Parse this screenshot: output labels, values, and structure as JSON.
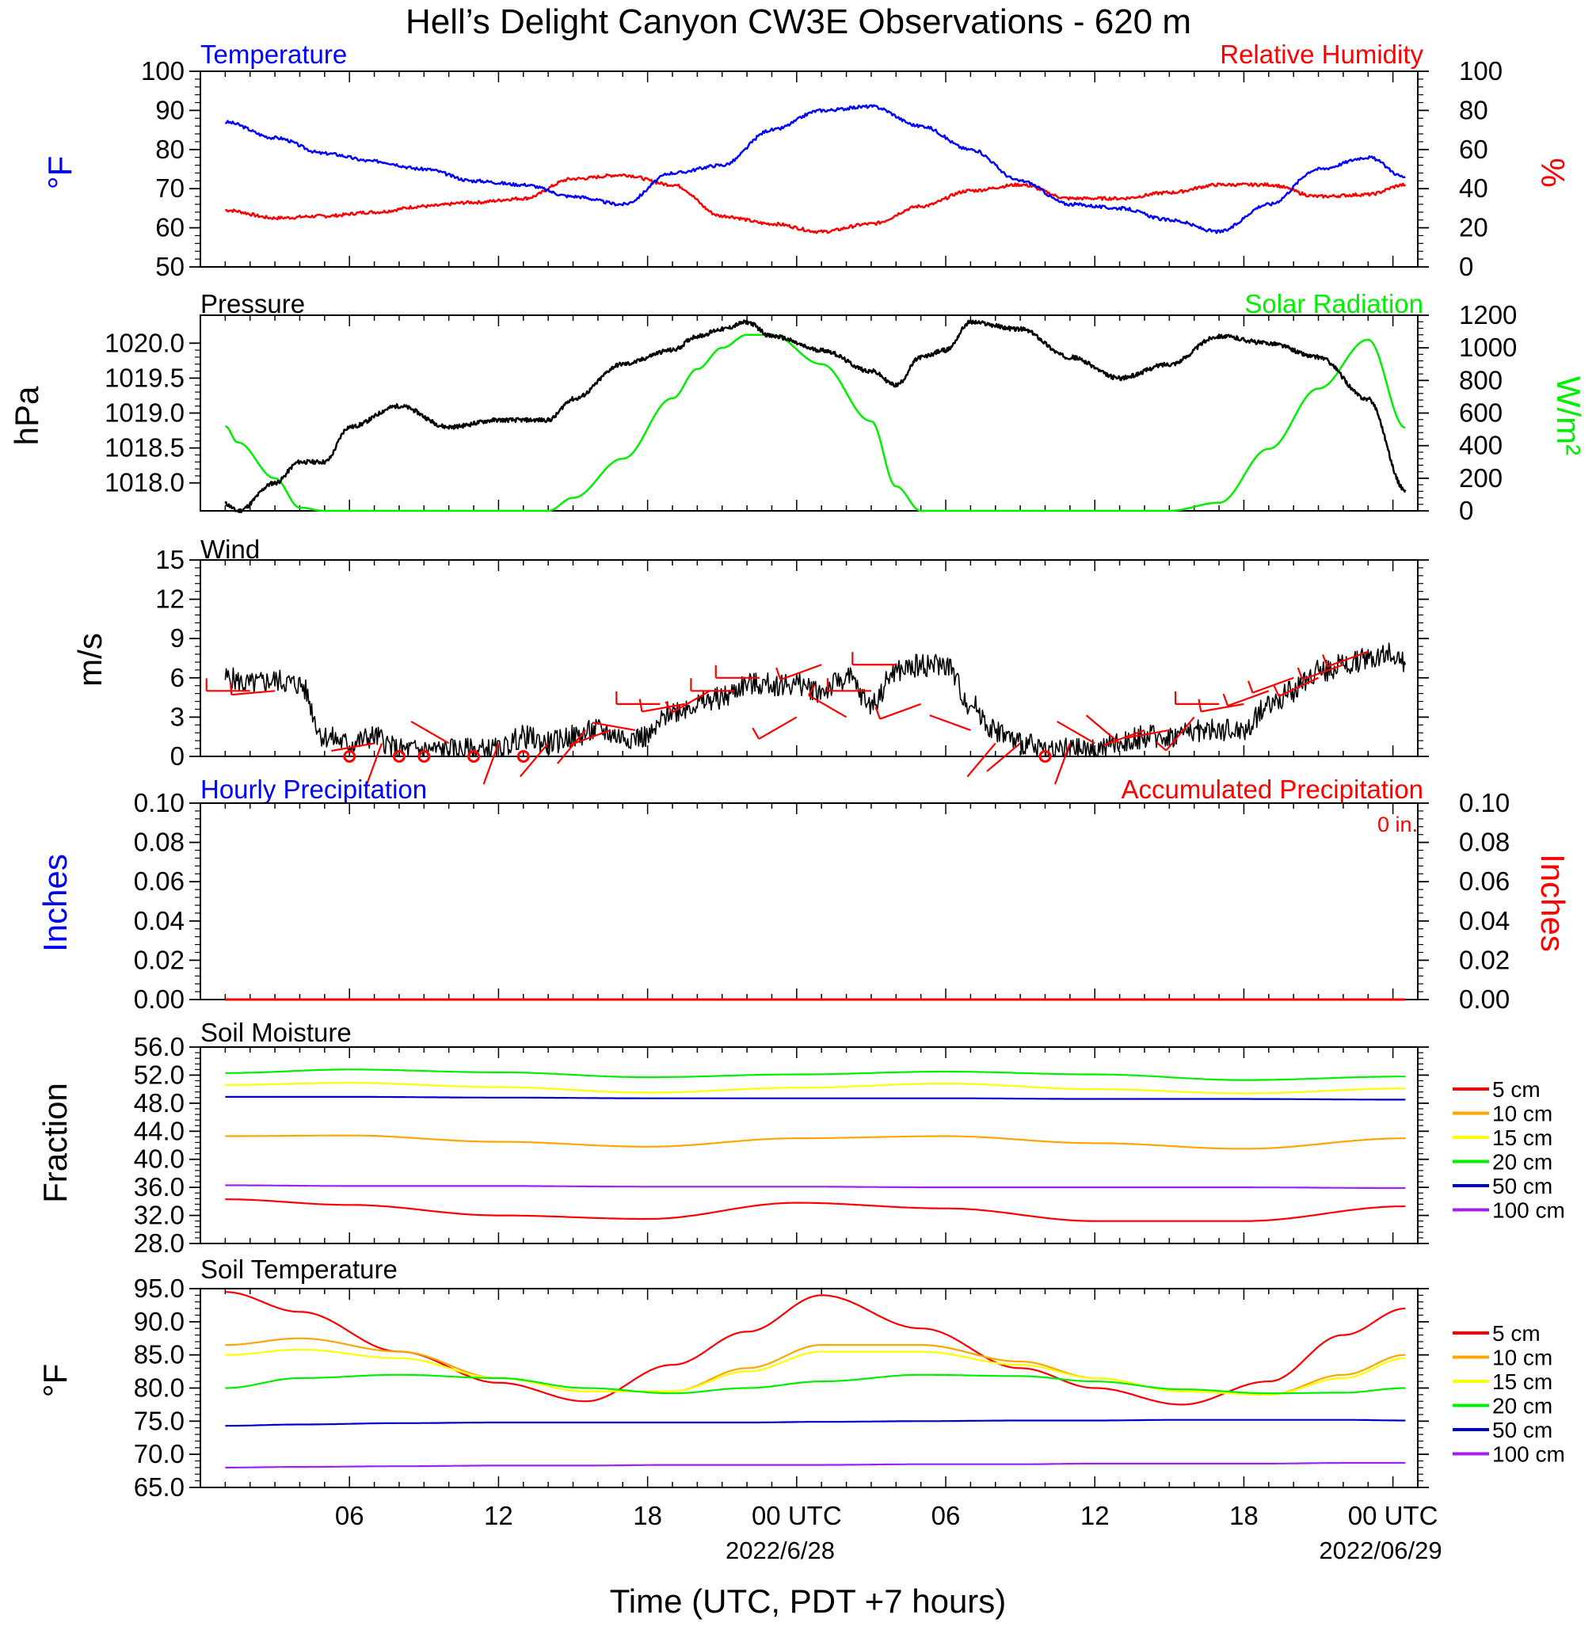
{
  "figure": {
    "title": "Hell’s Delight Canyon CW3E Observations - 620 m",
    "xlabel": "Time (UTC, PDT +7 hours)",
    "x_ticks": [
      "06",
      "12",
      "18",
      "00 UTC",
      "06",
      "12",
      "18",
      "00 UTC"
    ],
    "x_dates": [
      "2022/6/28",
      "2022/06/29"
    ]
  },
  "colors": {
    "temperature": "#0000ff",
    "humidity": "#ff0000",
    "pressure": "#000000",
    "solar": "#00ee00",
    "wind": "#000000",
    "barbs": "#ff0000",
    "hourly_precip": "#0000ff",
    "accum_precip": "#ff0000",
    "depth_5": "#ff0000",
    "depth_10": "#ffa500",
    "depth_15": "#ffff00",
    "depth_20": "#00ee00",
    "depth_50": "#0000cc",
    "depth_100": "#a020f0"
  },
  "chart_data": [
    {
      "type": "line",
      "title": "",
      "left_label": "Temperature",
      "right_label": "Relative Humidity",
      "ylabel_left": "°F",
      "ylabel_right": "%",
      "ylim_left": [
        50,
        100
      ],
      "ylim_right": [
        0,
        100
      ],
      "yticks_left": [
        "100",
        "90",
        "80",
        "70",
        "60",
        "50"
      ],
      "yticks_right": [
        "100",
        "80",
        "60",
        "40",
        "20",
        "0"
      ],
      "x_hours": [
        1,
        3,
        5,
        7,
        9,
        11,
        13,
        15,
        17,
        19,
        21,
        23,
        25,
        27,
        29,
        31,
        33,
        35,
        37,
        39,
        41,
        43,
        45,
        47,
        48.5
      ],
      "series": [
        {
          "name": "Temperature",
          "axis": "left",
          "values": [
            87,
            83,
            79,
            77,
            75,
            72,
            71,
            68,
            66,
            74,
            76,
            85,
            90,
            91,
            86,
            80,
            72,
            66,
            65,
            62,
            59,
            66,
            75,
            78,
            73
          ]
        },
        {
          "name": "Relative Humidity",
          "axis": "right",
          "values": [
            29,
            25,
            26,
            28,
            31,
            33,
            35,
            45,
            47,
            42,
            26,
            22,
            18,
            22,
            31,
            39,
            42,
            35,
            35,
            38,
            42,
            42,
            36,
            37,
            42
          ]
        }
      ]
    },
    {
      "type": "line",
      "title": "",
      "left_label": "Pressure",
      "right_label": "Solar Radiation",
      "ylabel_left": "hPa",
      "ylabel_right": "W/m²",
      "ylim_left": [
        1017.6,
        1020.4
      ],
      "ylim_right": [
        0,
        1200
      ],
      "yticks_left": [
        "1020.0",
        "1019.5",
        "1019.0",
        "1018.5",
        "1018.0"
      ],
      "yticks_right": [
        "1200",
        "1000",
        "800",
        "600",
        "400",
        "200",
        "0"
      ],
      "x_hours": [
        1,
        1.5,
        3,
        4,
        5,
        6,
        8,
        10,
        12,
        14,
        15,
        17,
        19,
        20,
        21,
        22,
        23,
        25,
        27,
        28,
        29,
        30,
        31,
        33,
        35,
        37,
        39,
        41,
        43,
        45,
        47,
        48.5
      ],
      "series": [
        {
          "name": "Pressure",
          "axis": "left",
          "values": [
            1017.7,
            1017.6,
            1018.0,
            1018.3,
            1018.3,
            1018.8,
            1019.1,
            1018.8,
            1018.9,
            1018.9,
            1019.2,
            1019.7,
            1019.9,
            1020.1,
            1020.2,
            1020.3,
            1020.1,
            1019.9,
            1019.6,
            1019.4,
            1019.8,
            1019.9,
            1020.3,
            1020.2,
            1019.8,
            1019.5,
            1019.7,
            1020.1,
            1020.0,
            1019.8,
            1019.2,
            1017.9
          ]
        },
        {
          "name": "Solar Radiation",
          "axis": "right",
          "values": [
            520,
            420,
            200,
            20,
            0,
            0,
            0,
            0,
            0,
            0,
            80,
            320,
            690,
            870,
            1000,
            1080,
            1080,
            900,
            550,
            150,
            0,
            0,
            0,
            0,
            0,
            0,
            0,
            50,
            380,
            750,
            1050,
            510
          ]
        }
      ]
    },
    {
      "type": "line",
      "title": "",
      "left_label": "Wind",
      "ylabel_left": "m/s",
      "ylim_left": [
        0,
        15
      ],
      "yticks_left": [
        "15",
        "12",
        "9",
        "6",
        "3",
        "0"
      ],
      "x_hours": [
        1,
        2,
        3,
        4,
        5,
        6,
        7,
        8,
        9,
        10,
        11,
        12,
        13,
        14,
        15,
        16,
        17,
        18,
        19,
        20,
        21,
        22,
        23,
        24,
        25,
        26,
        27,
        28,
        29,
        30,
        31,
        32,
        33,
        34,
        35,
        36,
        37,
        38,
        39,
        40,
        41,
        42,
        43,
        44,
        45,
        46,
        47,
        48,
        48.5
      ],
      "series": [
        {
          "name": "Wind",
          "axis": "left",
          "values": [
            6,
            5.5,
            5.8,
            5.5,
            1.5,
            1,
            1.5,
            0.5,
            0.5,
            0.5,
            0.5,
            0.5,
            1.5,
            1,
            1.5,
            2,
            1.5,
            1.5,
            3.5,
            4,
            4.5,
            5.5,
            5.5,
            5.5,
            5,
            6,
            4,
            6.5,
            7,
            7,
            4,
            2,
            1,
            0.5,
            0.5,
            0.5,
            1,
            1.5,
            1.5,
            2,
            2,
            2,
            4,
            5,
            6.5,
            7,
            7.5,
            8,
            7
          ]
        }
      ],
      "calm_markers_hours": [
        6,
        8,
        9,
        11,
        13,
        34
      ],
      "barbs": [
        {
          "hour": 2,
          "speed": 5,
          "dir_deg": 270
        },
        {
          "hour": 3,
          "speed": 5,
          "dir_deg": 265
        },
        {
          "hour": 7,
          "speed": 1,
          "dir_deg": 260
        },
        {
          "hour": 7.3,
          "speed": 1,
          "dir_deg": 200
        },
        {
          "hour": 10,
          "speed": 1,
          "dir_deg": 300
        },
        {
          "hour": 12,
          "speed": 1,
          "dir_deg": 200
        },
        {
          "hour": 14,
          "speed": 1,
          "dir_deg": 220
        },
        {
          "hour": 15.5,
          "speed": 2,
          "dir_deg": 220
        },
        {
          "hour": 16.5,
          "speed": 2,
          "dir_deg": 250
        },
        {
          "hour": 17.5,
          "speed": 2,
          "dir_deg": 280
        },
        {
          "hour": 18.5,
          "speed": 4,
          "dir_deg": 270
        },
        {
          "hour": 19.5,
          "speed": 4,
          "dir_deg": 260
        },
        {
          "hour": 20.5,
          "speed": 5,
          "dir_deg": 240
        },
        {
          "hour": 21.5,
          "speed": 5,
          "dir_deg": 270
        },
        {
          "hour": 22.5,
          "speed": 6,
          "dir_deg": 270
        },
        {
          "hour": 24,
          "speed": 3,
          "dir_deg": 240
        },
        {
          "hour": 25,
          "speed": 7,
          "dir_deg": 250
        },
        {
          "hour": 26,
          "speed": 3,
          "dir_deg": 300
        },
        {
          "hour": 27,
          "speed": 5,
          "dir_deg": 270
        },
        {
          "hour": 28,
          "speed": 7,
          "dir_deg": 270
        },
        {
          "hour": 29,
          "speed": 4,
          "dir_deg": 250
        },
        {
          "hour": 31,
          "speed": 2,
          "dir_deg": 290
        },
        {
          "hour": 32,
          "speed": 1,
          "dir_deg": 220
        },
        {
          "hour": 33,
          "speed": 1,
          "dir_deg": 230
        },
        {
          "hour": 35,
          "speed": 1,
          "dir_deg": 200
        },
        {
          "hour": 36,
          "speed": 1,
          "dir_deg": 300
        },
        {
          "hour": 37,
          "speed": 1,
          "dir_deg": 310
        },
        {
          "hour": 38,
          "speed": 2,
          "dir_deg": 250
        },
        {
          "hour": 39,
          "speed": 2,
          "dir_deg": 260
        },
        {
          "hour": 40,
          "speed": 3,
          "dir_deg": 220
        },
        {
          "hour": 41,
          "speed": 4,
          "dir_deg": 270
        },
        {
          "hour": 42,
          "speed": 4,
          "dir_deg": 260
        },
        {
          "hour": 43,
          "speed": 5,
          "dir_deg": 250
        },
        {
          "hour": 44,
          "speed": 6,
          "dir_deg": 250
        },
        {
          "hour": 45,
          "speed": 6,
          "dir_deg": 245
        },
        {
          "hour": 46,
          "speed": 7,
          "dir_deg": 250
        },
        {
          "hour": 47,
          "speed": 8,
          "dir_deg": 250
        }
      ]
    },
    {
      "type": "line",
      "title": "",
      "left_label": "Hourly Precipitation",
      "right_label": "Accumulated Precipitation",
      "ylabel_left": "Inches",
      "ylabel_right": "Inches",
      "ylim_left": [
        0,
        0.1
      ],
      "ylim_right": [
        0,
        0.1
      ],
      "yticks_left": [
        "0.10",
        "0.08",
        "0.06",
        "0.04",
        "0.02",
        "0.00"
      ],
      "yticks_right": [
        "0.10",
        "0.08",
        "0.06",
        "0.04",
        "0.02",
        "0.00"
      ],
      "annotation": "0 in.",
      "x_hours": [
        1,
        48.5
      ],
      "series": [
        {
          "name": "Hourly Precipitation",
          "axis": "left",
          "values": [
            0,
            0
          ]
        },
        {
          "name": "Accumulated Precipitation",
          "axis": "right",
          "values": [
            0,
            0
          ]
        }
      ]
    },
    {
      "type": "line",
      "title": "",
      "left_label": "Soil Moisture",
      "ylabel_left": "Fraction",
      "ylim_left": [
        28,
        56
      ],
      "yticks_left": [
        "56.0",
        "52.0",
        "48.0",
        "44.0",
        "40.0",
        "36.0",
        "32.0",
        "28.0"
      ],
      "legend": [
        "5 cm",
        "10 cm",
        "15 cm",
        "20 cm",
        "50 cm",
        "100 cm"
      ],
      "x_hours": [
        1,
        6,
        12,
        18,
        24,
        30,
        36,
        42,
        48.5
      ],
      "series": [
        {
          "name": "5 cm",
          "values": [
            34.3,
            33.5,
            32.0,
            31.5,
            33.8,
            33.0,
            31.2,
            31.2,
            33.3
          ]
        },
        {
          "name": "10 cm",
          "values": [
            43.3,
            43.4,
            42.5,
            41.8,
            43.0,
            43.3,
            42.3,
            41.5,
            43.0
          ]
        },
        {
          "name": "15 cm",
          "values": [
            50.6,
            50.9,
            50.3,
            49.5,
            50.2,
            50.8,
            50.0,
            49.4,
            50.1
          ]
        },
        {
          "name": "20 cm",
          "values": [
            52.3,
            52.8,
            52.4,
            51.7,
            52.1,
            52.5,
            52.1,
            51.3,
            51.8
          ]
        },
        {
          "name": "50 cm",
          "values": [
            48.9,
            48.9,
            48.8,
            48.7,
            48.7,
            48.7,
            48.6,
            48.6,
            48.5
          ]
        },
        {
          "name": "100 cm",
          "values": [
            36.3,
            36.2,
            36.2,
            36.1,
            36.1,
            36.0,
            36.0,
            36.0,
            35.9
          ]
        }
      ]
    },
    {
      "type": "line",
      "title": "",
      "left_label": "Soil Temperature",
      "ylabel_left": "°F",
      "ylim_left": [
        65,
        95
      ],
      "yticks_left": [
        "95.0",
        "90.0",
        "85.0",
        "80.0",
        "75.0",
        "70.0",
        "65.0"
      ],
      "legend": [
        "5 cm",
        "10 cm",
        "15 cm",
        "20 cm",
        "50 cm",
        "100 cm"
      ],
      "x_hours": [
        1,
        4,
        8,
        12,
        15.5,
        19,
        22,
        25,
        29,
        33,
        36,
        39.5,
        43,
        46,
        48.5
      ],
      "series": [
        {
          "name": "5 cm",
          "values": [
            94.5,
            91.5,
            85.5,
            80.8,
            78.0,
            83.5,
            88.5,
            94.0,
            89.0,
            83.0,
            80.0,
            77.5,
            81.0,
            88.0,
            92.0
          ]
        },
        {
          "name": "10 cm",
          "values": [
            86.5,
            87.5,
            85.5,
            81.5,
            79.5,
            79.5,
            83.0,
            86.5,
            86.5,
            84.0,
            81.5,
            79.5,
            79.0,
            82.0,
            85.0
          ]
        },
        {
          "name": "15 cm",
          "values": [
            85.0,
            85.8,
            84.5,
            81.5,
            79.5,
            79.5,
            82.5,
            85.5,
            85.5,
            83.5,
            81.5,
            79.5,
            79.0,
            81.5,
            84.5
          ]
        },
        {
          "name": "20 cm",
          "values": [
            80.0,
            81.5,
            82.0,
            81.5,
            80.0,
            79.2,
            80.0,
            81.0,
            82.0,
            81.8,
            81.0,
            79.8,
            79.2,
            79.3,
            80.0
          ]
        },
        {
          "name": "50 cm",
          "values": [
            74.3,
            74.5,
            74.7,
            74.8,
            74.8,
            74.8,
            74.8,
            74.9,
            75.0,
            75.1,
            75.1,
            75.2,
            75.2,
            75.2,
            75.1
          ]
        },
        {
          "name": "100 cm",
          "values": [
            68.0,
            68.1,
            68.2,
            68.3,
            68.3,
            68.4,
            68.4,
            68.4,
            68.5,
            68.5,
            68.6,
            68.6,
            68.6,
            68.7,
            68.7
          ]
        }
      ]
    }
  ]
}
